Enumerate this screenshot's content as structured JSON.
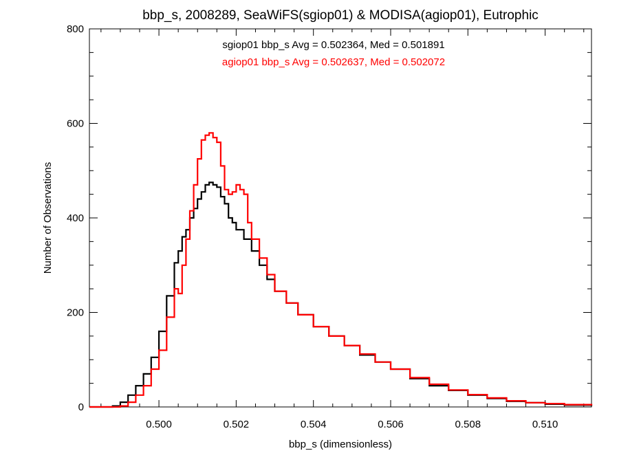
{
  "chart_data": {
    "type": "line",
    "subtype": "step-histogram",
    "title": "bbp_s, 2008289, SeaWiFS(sgiop01) & MODISA(agiop01), Eutrophic",
    "xlabel": "bbp_s (dimensionless)",
    "ylabel": "Number of Observations",
    "xlim": [
      0.4982,
      0.5112
    ],
    "ylim": [
      0,
      800
    ],
    "x_ticks": [
      0.5,
      0.502,
      0.504,
      0.506,
      0.508,
      0.51
    ],
    "x_tick_labels": [
      "0.500",
      "0.502",
      "0.504",
      "0.506",
      "0.508",
      "0.510"
    ],
    "y_ticks": [
      0,
      200,
      400,
      600,
      800
    ],
    "y_tick_labels": [
      "0",
      "200",
      "400",
      "600",
      "800"
    ],
    "grid": false,
    "annotations": [
      {
        "text": "sgiop01 bbp_s Avg = 0.502364, Med = 0.501891",
        "color": "#000000"
      },
      {
        "text": "agiop01 bbp_s Avg = 0.502637, Med = 0.502072",
        "color": "#ff0000"
      }
    ],
    "series": [
      {
        "color": "#000000",
        "x": [
          0.4982,
          0.4988,
          0.499,
          0.4992,
          0.4994,
          0.4996,
          0.4998,
          0.5,
          0.5002,
          0.5004,
          0.5005,
          0.5006,
          0.5007,
          0.5008,
          0.5009,
          0.501,
          0.5011,
          0.5012,
          0.5013,
          0.5014,
          0.5015,
          0.5016,
          0.5017,
          0.5018,
          0.5019,
          0.502,
          0.5022,
          0.5024,
          0.5026,
          0.5028,
          0.503,
          0.5033,
          0.5036,
          0.504,
          0.5044,
          0.5048,
          0.5052,
          0.5056,
          0.506,
          0.5065,
          0.507,
          0.5075,
          0.508,
          0.5085,
          0.509,
          0.5095,
          0.51,
          0.5105,
          0.5112
        ],
        "values": [
          0,
          2,
          10,
          25,
          45,
          70,
          105,
          160,
          235,
          305,
          330,
          360,
          375,
          400,
          420,
          440,
          455,
          470,
          475,
          470,
          465,
          445,
          430,
          400,
          390,
          375,
          355,
          330,
          300,
          270,
          245,
          220,
          195,
          170,
          150,
          130,
          110,
          95,
          80,
          60,
          45,
          35,
          25,
          18,
          12,
          9,
          6,
          4,
          2
        ]
      },
      {
        "color": "#ff0000",
        "x": [
          0.4982,
          0.4988,
          0.499,
          0.4992,
          0.4994,
          0.4996,
          0.4998,
          0.5,
          0.5002,
          0.5004,
          0.5005,
          0.5006,
          0.5007,
          0.5008,
          0.5009,
          0.501,
          0.5011,
          0.5012,
          0.5013,
          0.5014,
          0.5015,
          0.5016,
          0.5017,
          0.5018,
          0.5019,
          0.502,
          0.5021,
          0.5022,
          0.5023,
          0.5024,
          0.5026,
          0.5028,
          0.503,
          0.5033,
          0.5036,
          0.504,
          0.5044,
          0.5048,
          0.5052,
          0.5056,
          0.506,
          0.5065,
          0.507,
          0.5075,
          0.508,
          0.5085,
          0.509,
          0.5095,
          0.51,
          0.5105,
          0.5112
        ],
        "values": [
          0,
          0,
          2,
          10,
          25,
          45,
          80,
          120,
          190,
          250,
          240,
          300,
          355,
          415,
          470,
          525,
          565,
          575,
          580,
          570,
          560,
          510,
          460,
          450,
          455,
          470,
          460,
          450,
          390,
          355,
          315,
          280,
          245,
          220,
          195,
          170,
          150,
          130,
          112,
          95,
          80,
          62,
          48,
          36,
          26,
          19,
          13,
          9,
          7,
          5,
          3
        ]
      }
    ]
  }
}
